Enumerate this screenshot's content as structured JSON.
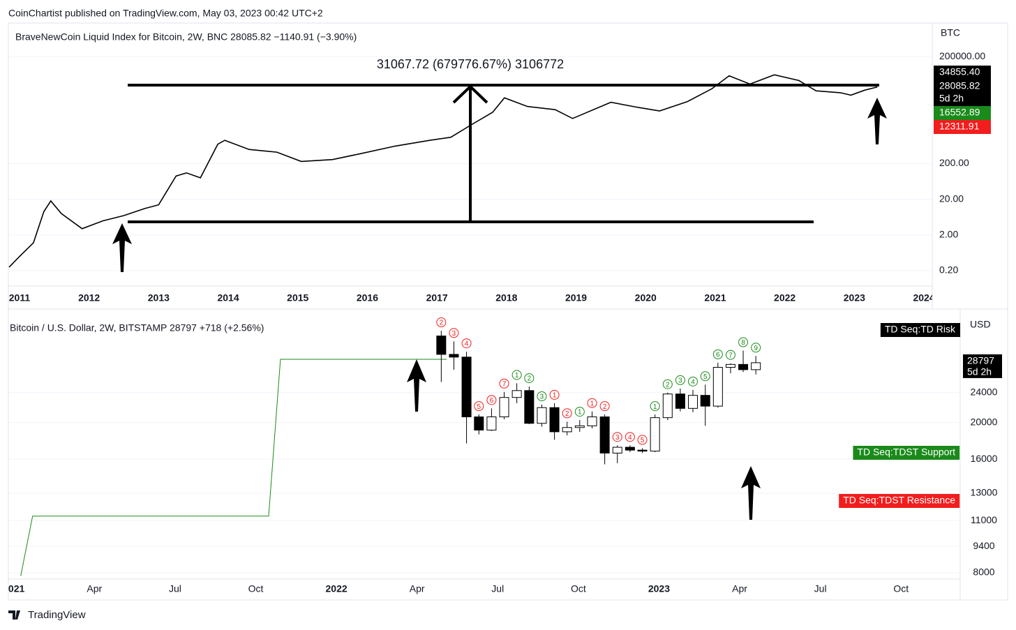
{
  "header": {
    "text": "CoinChartist published on TradingView.com, May 03, 2023 00:42 UTC+2"
  },
  "footer": {
    "brand": "TradingView"
  },
  "chart_data": [
    {
      "type": "line",
      "legend_title": "BraveNewCoin Liquid Index for Bitcoin, 2W, BNC  28085.82  −1140.91 (−3.90%)",
      "annotation": "31067.72 (679776.67%) 3106772",
      "y_axis_label": "BTC",
      "log_y": true,
      "xlim": [
        2010.84,
        2024.12
      ],
      "ylim": [
        0.074,
        1750000
      ],
      "xticks": [
        2011,
        2012,
        2013,
        2014,
        2015,
        2016,
        2017,
        2018,
        2019,
        2020,
        2021,
        2022,
        2023,
        2024
      ],
      "yticks": [
        {
          "value": 0.2,
          "label": "0.20"
        },
        {
          "value": 2,
          "label": "2.00"
        },
        {
          "value": 20,
          "label": "20.00"
        },
        {
          "value": 200,
          "label": "200.00"
        },
        {
          "value": 200000,
          "label": "200000.00"
        }
      ],
      "color": "#000000",
      "x": [
        2010.85,
        2011.0,
        2011.2,
        2011.35,
        2011.45,
        2011.6,
        2011.9,
        2012.2,
        2012.5,
        2012.8,
        2013.0,
        2013.25,
        2013.4,
        2013.6,
        2013.85,
        2013.95,
        2014.3,
        2014.7,
        2015.05,
        2015.5,
        2015.9,
        2016.4,
        2016.9,
        2017.2,
        2017.5,
        2017.8,
        2017.97,
        2018.3,
        2018.7,
        2018.95,
        2019.5,
        2019.9,
        2020.2,
        2020.6,
        2020.95,
        2021.2,
        2021.5,
        2021.85,
        2022.2,
        2022.45,
        2022.8,
        2022.95,
        2023.15,
        2023.33
      ],
      "values": [
        0.25,
        0.5,
        1.2,
        9,
        18,
        8,
        3,
        5,
        7,
        11,
        14,
        90,
        110,
        80,
        700,
        900,
        500,
        420,
        230,
        260,
        380,
        620,
        900,
        1100,
        2500,
        5500,
        14000,
        8000,
        6500,
        3700,
        10500,
        7500,
        6000,
        11000,
        25000,
        58000,
        34000,
        62000,
        43000,
        22000,
        19500,
        16600,
        23000,
        28085.82
      ],
      "price_labels": [
        {
          "value": 34855.4,
          "label": "34855.40",
          "color": "#000000"
        },
        {
          "value": 28085.82,
          "label": "28085.82",
          "sub": "5d 2h",
          "color": "#000000"
        },
        {
          "value": 16552.89,
          "label": "16552.89",
          "color": "#1a8a1a"
        },
        {
          "value": 12311.91,
          "label": "12311.91",
          "color": "#f21d1d"
        }
      ]
    },
    {
      "type": "candlestick",
      "legend_title": "Bitcoin / U.S. Dollar, 2W, BITSTAMP  28797  +718 (+2.56%)",
      "y_axis_label": "USD",
      "log_y": true,
      "xlim": [
        -0.2,
        35.2
      ],
      "ylim": [
        7700,
        39600
      ],
      "xticks": [
        {
          "value": 0,
          "label": "2021"
        },
        {
          "value": 3,
          "label": "Apr"
        },
        {
          "value": 6,
          "label": "Jul"
        },
        {
          "value": 9,
          "label": "Oct"
        },
        {
          "value": 12,
          "label": "2022"
        },
        {
          "value": 15,
          "label": "Apr"
        },
        {
          "value": 18,
          "label": "Jul"
        },
        {
          "value": 21,
          "label": "Oct"
        },
        {
          "value": 24,
          "label": "2023"
        },
        {
          "value": 27,
          "label": "Apr"
        },
        {
          "value": 30,
          "label": "Jul"
        },
        {
          "value": 33,
          "label": "Oct"
        }
      ],
      "yticks": [
        8000,
        9400,
        11000,
        13000,
        16000,
        20000,
        24000
      ],
      "x": [
        15.9,
        16.37,
        16.84,
        17.3,
        17.77,
        18.24,
        18.71,
        19.17,
        19.64,
        20.11,
        20.58,
        21.05,
        21.51,
        21.98,
        22.45,
        22.92,
        23.38,
        23.85,
        24.32,
        24.79,
        25.26,
        25.72,
        26.19,
        26.66,
        27.13,
        27.6
      ],
      "open": [
        33900,
        30300,
        29800,
        20700,
        19100,
        20700,
        23300,
        24300,
        19900,
        21900,
        18900,
        19400,
        19600,
        20700,
        16600,
        17200,
        16900,
        16800,
        20600,
        23800,
        21800,
        23600,
        22100,
        28000,
        28500,
        27600
      ],
      "high": [
        35000,
        32800,
        30800,
        21000,
        21800,
        24100,
        25400,
        24900,
        22300,
        22500,
        20100,
        20300,
        21400,
        21000,
        17400,
        17400,
        17100,
        21000,
        24000,
        24600,
        24400,
        25200,
        28800,
        28700,
        31000,
        30000
      ],
      "low": [
        25600,
        27600,
        17600,
        18600,
        19000,
        20400,
        22500,
        19800,
        19500,
        18000,
        18500,
        18900,
        19300,
        15500,
        15600,
        16700,
        16600,
        16700,
        20300,
        21400,
        21300,
        19600,
        21900,
        27000,
        27200,
        26800
      ],
      "close": [
        30300,
        29800,
        20700,
        19100,
        20700,
        23300,
        24300,
        19900,
        21900,
        18900,
        19400,
        19600,
        20700,
        16600,
        17200,
        16900,
        16800,
        20600,
        23800,
        21800,
        23600,
        22100,
        28000,
        28500,
        27600,
        28797
      ],
      "td_red": [
        2,
        3,
        4,
        5,
        6,
        7,
        null,
        null,
        null,
        1,
        2,
        null,
        1,
        2,
        3,
        4,
        5,
        null,
        null,
        null,
        null,
        null,
        null,
        null,
        null,
        null
      ],
      "td_green": [
        null,
        null,
        null,
        null,
        null,
        null,
        1,
        2,
        3,
        null,
        null,
        1,
        null,
        null,
        null,
        null,
        null,
        1,
        2,
        3,
        4,
        5,
        6,
        7,
        8,
        9
      ],
      "support": {
        "color": "#1a8a1a",
        "x": [
          0.26,
          0.7,
          9.48,
          9.92,
          16.1
        ],
        "values": [
          7850,
          11300,
          11300,
          29400,
          29400
        ]
      },
      "price_labels": [
        {
          "value": 28797,
          "sub": "5d 2h",
          "color": "#000000"
        }
      ],
      "indicator_labels": [
        {
          "text": "TD Seq:TD Risk",
          "color": "#000000"
        },
        {
          "text": "TD Seq:TDST Support",
          "color": "#1a8a1a"
        },
        {
          "text": "TD Seq:TDST Resistance",
          "color": "#f21d1d"
        }
      ]
    }
  ]
}
